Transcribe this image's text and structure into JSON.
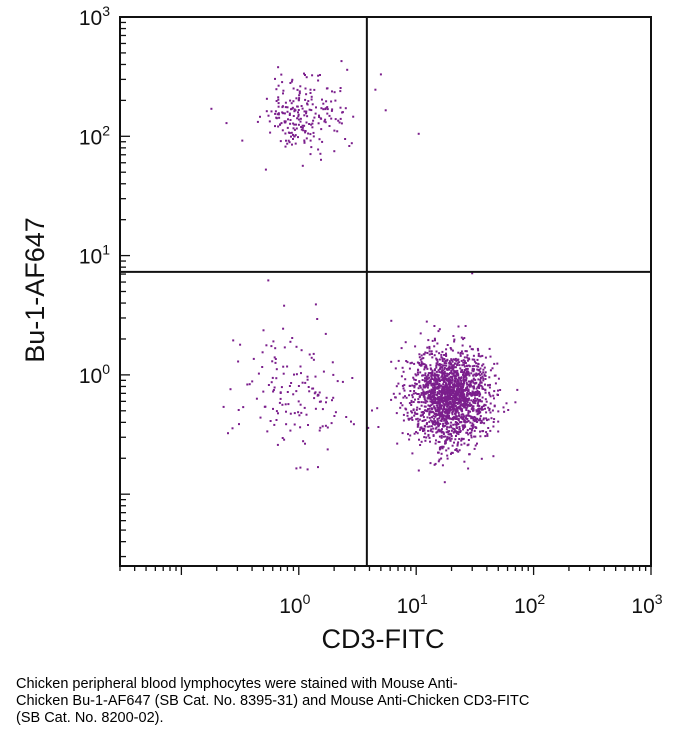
{
  "chart_data": {
    "type": "scatter",
    "xlabel": "CD3-FITC",
    "ylabel": "Bu-1-AF647",
    "x_scale": "log",
    "y_scale": "log",
    "xlim": [
      0.03,
      1000
    ],
    "ylim": [
      0.025,
      1000
    ],
    "x_ticks": [
      {
        "base": "10",
        "exp": "0",
        "value": 1
      },
      {
        "base": "10",
        "exp": "1",
        "value": 10
      },
      {
        "base": "10",
        "exp": "2",
        "value": 100
      },
      {
        "base": "10",
        "exp": "3",
        "value": 1000
      }
    ],
    "y_ticks": [
      {
        "base": "10",
        "exp": "0",
        "value": 1
      },
      {
        "base": "10",
        "exp": "1",
        "value": 10
      },
      {
        "base": "10",
        "exp": "2",
        "value": 100
      },
      {
        "base": "10",
        "exp": "3",
        "value": 1000
      }
    ],
    "gates": {
      "x": 3.8,
      "y": 7.3
    },
    "point_color": "#7b1e8c",
    "grid": false,
    "populations": [
      {
        "label_visible": false,
        "count": 230,
        "x_log_mean": 0.05,
        "x_log_sd": 0.17,
        "y_log_mean": 2.18,
        "y_log_sd": 0.17
      },
      {
        "label_visible": false,
        "count": 150,
        "x_log_mean": -0.05,
        "x_log_sd": 0.24,
        "y_log_mean": -0.18,
        "y_log_sd": 0.27
      },
      {
        "label_visible": false,
        "count": 1900,
        "x_log_mean": 1.29,
        "x_log_sd": 0.17,
        "y_log_mean": -0.18,
        "y_log_sd": 0.2
      }
    ],
    "sparse_points": [
      {
        "x": 5.0,
        "y": 330
      },
      {
        "x": 5.5,
        "y": 165
      },
      {
        "x": 10.5,
        "y": 105
      },
      {
        "x": 0.18,
        "y": 170
      },
      {
        "x": 0.33,
        "y": 92
      },
      {
        "x": 0.55,
        "y": 6.2
      },
      {
        "x": 1.4,
        "y": 3.9
      },
      {
        "x": 30,
        "y": 7.1
      },
      {
        "x": 0.75,
        "y": 3.8
      }
    ]
  },
  "caption": {
    "line1": "Chicken peripheral blood lymphocytes were stained with Mouse Anti-",
    "line2": "Chicken Bu-1-AF647 (SB Cat. No. 8395-31) and Mouse Anti-Chicken CD3-FITC",
    "line3": "(SB Cat. No. 8200-02)."
  }
}
